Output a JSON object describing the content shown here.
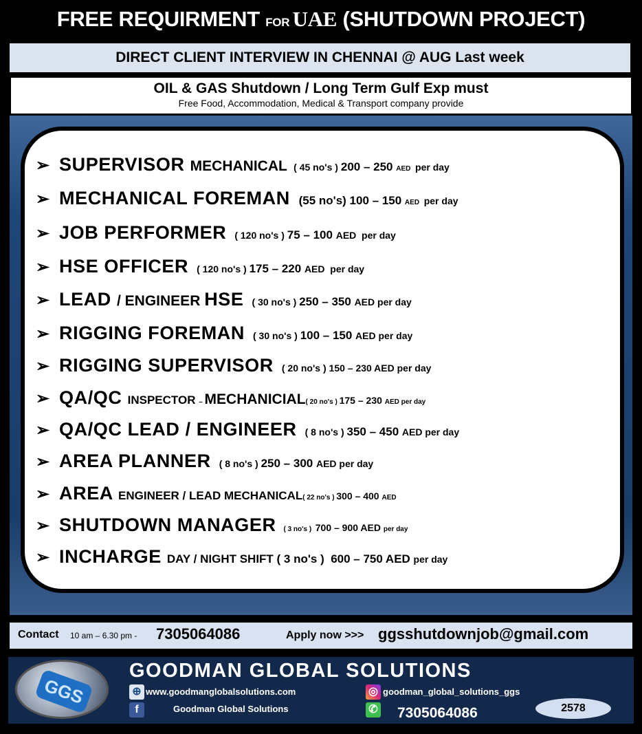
{
  "header": {
    "title_part1": "FREE REQUIRMENT ",
    "title_for": "FOR ",
    "title_uae": "UAE",
    "title_part2": "  (SHUTDOWN PROJECT)"
  },
  "interview": "DIRECT CLIENT INTERVIEW IN CHENNAI @ AUG Last week",
  "requirements": {
    "line1": "OIL & GAS Shutdown / Long Term Gulf Exp must",
    "line2": "Free Food, Accommodation, Medical & Transport  company provide"
  },
  "bullet_icon": "arrow-head",
  "jobs": [
    {
      "segments": [
        [
          "xl",
          "SUPERVISOR "
        ],
        [
          "l",
          "MECHANICAL "
        ],
        [
          "s",
          " ( 45 no's ) "
        ],
        [
          "m",
          "200 – 250 "
        ],
        [
          "xs",
          "AED "
        ],
        [
          "s",
          " per day"
        ]
      ]
    },
    {
      "segments": [
        [
          "xl",
          "MECHANICAL FOREMAN "
        ],
        [
          "m",
          " (55 no's) 100 – 150 "
        ],
        [
          "xs",
          "AED "
        ],
        [
          "s",
          " per day"
        ]
      ]
    },
    {
      "segments": [
        [
          "xl",
          "JOB PERFORMER "
        ],
        [
          "s",
          " ( 120 no's ) "
        ],
        [
          "m",
          "75 – 100 "
        ],
        [
          "s",
          "AED  per day"
        ]
      ]
    },
    {
      "segments": [
        [
          "xl",
          "HSE OFFICER "
        ],
        [
          "s",
          " ( 120 no's ) "
        ],
        [
          "m",
          "175 – 220 "
        ],
        [
          "s",
          "AED  per day"
        ]
      ]
    },
    {
      "segments": [
        [
          "xl",
          "LEAD "
        ],
        [
          "l",
          "/ ENGINEER "
        ],
        [
          "xl",
          "HSE "
        ],
        [
          "s",
          " ( 30 no's ) "
        ],
        [
          "m",
          "250 – 350 "
        ],
        [
          "s",
          "AED per day"
        ]
      ]
    },
    {
      "segments": [
        [
          "xl",
          "RIGGING FOREMAN "
        ],
        [
          "s",
          " ( 30 no's ) "
        ],
        [
          "m",
          "100 – 150 "
        ],
        [
          "s",
          "AED per day"
        ]
      ]
    },
    {
      "segments": [
        [
          "xl",
          "RIGGING SUPERVISOR "
        ],
        [
          "s",
          " ( 20 no's ) 150 – 230 AED per day"
        ]
      ]
    },
    {
      "segments": [
        [
          "xl",
          "QA/QC "
        ],
        [
          "m",
          "INSPECTOR "
        ],
        [
          "xs",
          "– "
        ],
        [
          "l",
          "MECHANICIAL"
        ],
        [
          "xs",
          "( 20 no's ) "
        ],
        [
          "s",
          "175 – 230 "
        ],
        [
          "xs",
          "AED per day"
        ]
      ]
    },
    {
      "segments": [
        [
          "xl",
          "QA/QC LEAD / ENGINEER "
        ],
        [
          "s",
          " ( 8 no's ) "
        ],
        [
          "m",
          "350 – 450 "
        ],
        [
          "s",
          "AED per day"
        ]
      ]
    },
    {
      "segments": [
        [
          "xl",
          "AREA PLANNER "
        ],
        [
          "s",
          " ( 8 no's ) "
        ],
        [
          "m",
          "250 – 300 "
        ],
        [
          "s",
          "AED per day"
        ]
      ]
    },
    {
      "segments": [
        [
          "xl",
          "AREA "
        ],
        [
          "m",
          "ENGINEER / LEAD MECHANICAL"
        ],
        [
          "xs",
          "( 22 no's ) "
        ],
        [
          "s",
          "300 – 400 "
        ],
        [
          "xs",
          "AED"
        ]
      ]
    },
    {
      "segments": [
        [
          "xl",
          "SHUTDOWN MANAGER "
        ],
        [
          "xs",
          " ( 3 no's )  "
        ],
        [
          "s",
          "700 – 900 AED "
        ],
        [
          "xs",
          "per day"
        ]
      ]
    },
    {
      "segments": [
        [
          "xl",
          "INCHARGE "
        ],
        [
          "m",
          "DAY / NIGHT SHIFT ( 3 no's )  600 – 750 AED "
        ],
        [
          "s",
          "per day"
        ]
      ]
    }
  ],
  "contact": {
    "label": "Contact",
    "hours": "10 am – 6.30 pm -",
    "phone": "7305064086",
    "apply": "Apply now >>>",
    "email": "ggsshutdownjob@gmail.com"
  },
  "footer": {
    "logo_text": "GGS",
    "company": "GOODMAN  GLOBAL SOLUTIONS",
    "website": "www.goodmanglobalsolutions.com",
    "instagram": "goodman_global_solutions_ggs",
    "facebook": "Goodman Global Solutions",
    "whatsapp": "7305064086",
    "badge": "2578"
  },
  "colors": {
    "band": "#dce4f0",
    "panel_blue": "#1f4678",
    "footer": "#13294b"
  }
}
